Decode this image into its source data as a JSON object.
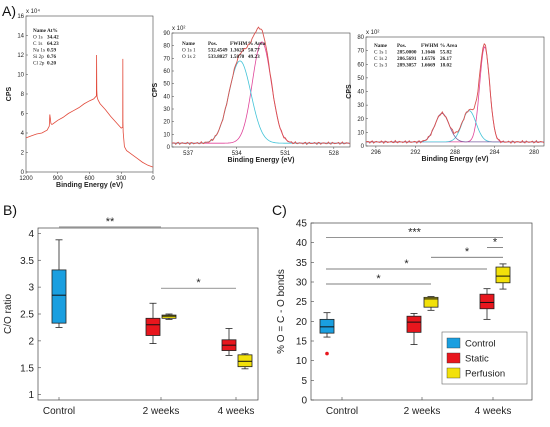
{
  "panel_letters": {
    "a": "A)",
    "b": "B)",
    "c": "C)"
  },
  "chart_data": [
    {
      "id": "survey",
      "type": "line",
      "xlabel": "Binding Energy (eV)",
      "ylabel": "CPS",
      "x_multiplier": "x 10⁴",
      "xlim": [
        1200,
        0
      ],
      "ylim": [
        0,
        16
      ],
      "x_ticks": [
        1200,
        900,
        600,
        300,
        0
      ],
      "y_ticks": [
        0,
        2,
        4,
        6,
        8,
        10,
        12,
        14,
        16
      ],
      "table": {
        "headers": [
          "Name",
          "At%"
        ],
        "rows": [
          [
            "O 1s",
            "34.42"
          ],
          [
            "C 1s",
            "64.23"
          ],
          [
            "Na 1s",
            "0.59"
          ],
          [
            "Si 2p",
            "0.76"
          ],
          [
            "Cl 2p",
            "0.20"
          ]
        ]
      },
      "x": [
        1200,
        1150,
        1100,
        1050,
        1000,
        980,
        975,
        970,
        965,
        960,
        950,
        900,
        850,
        800,
        750,
        700,
        650,
        600,
        560,
        535,
        533,
        531,
        528,
        520,
        500,
        450,
        400,
        350,
        300,
        286,
        285,
        284,
        282,
        270,
        250,
        200,
        150,
        100,
        50,
        0
      ],
      "y": [
        3.5,
        3.7,
        3.9,
        4.0,
        4.3,
        4.7,
        5.9,
        5.5,
        5.0,
        4.9,
        4.9,
        5.3,
        5.6,
        6.0,
        6.3,
        6.6,
        7.0,
        7.3,
        7.5,
        7.8,
        12.0,
        8.4,
        7.7,
        7.4,
        7.0,
        6.4,
        5.7,
        5.1,
        4.5,
        4.6,
        11.6,
        5.2,
        4.1,
        2.6,
        2.2,
        1.8,
        1.4,
        1.0,
        0.7,
        0.5
      ]
    },
    {
      "id": "o1s",
      "type": "line",
      "xlabel": "Binding Energy (eV)",
      "ylabel": "CPS",
      "x_multiplier": "x 10²",
      "xlim": [
        538,
        527
      ],
      "ylim": [
        0,
        90
      ],
      "x_ticks": [
        537,
        534,
        531,
        528
      ],
      "y_ticks": [
        0,
        10,
        20,
        30,
        40,
        50,
        60,
        70,
        80,
        90
      ],
      "table": {
        "headers": [
          "Name",
          "Pos.",
          "FWHM",
          "% Area"
        ],
        "rows": [
          [
            "O 1s 1",
            "532.4549",
            "1.3625",
            "50.77"
          ],
          [
            "O 1s 2",
            "533.8027",
            "1.5870",
            "49.23"
          ]
        ]
      },
      "components": [
        {
          "center": 532.45,
          "height": 80,
          "sigma": 0.58
        },
        {
          "center": 533.8,
          "height": 65,
          "sigma": 0.68
        }
      ],
      "baseline": 3,
      "series_colors": [
        "#d9534f",
        "#e0459a",
        "#45c4d8"
      ]
    },
    {
      "id": "c1s",
      "type": "line",
      "xlabel": "Binding Energy (eV)",
      "ylabel": "CPS",
      "x_multiplier": "x 10²",
      "xlim": [
        297,
        279
      ],
      "ylim": [
        0,
        80
      ],
      "x_ticks": [
        296,
        292,
        288,
        284,
        280
      ],
      "y_ticks": [
        0,
        10,
        20,
        30,
        40,
        50,
        60,
        70,
        80
      ],
      "table": {
        "headers": [
          "Name",
          "Pos.",
          "FWHM",
          "% Area"
        ],
        "rows": [
          [
            "C 1s 1",
            "285.0000",
            "1.1646",
            "55.82"
          ],
          [
            "C 1s 2",
            "286.5691",
            "1.6576",
            "26.17"
          ],
          [
            "C 1s 3",
            "289.3057",
            "1.6669",
            "18.02"
          ]
        ]
      },
      "components": [
        {
          "center": 285.0,
          "height": 70,
          "sigma": 0.5
        },
        {
          "center": 286.57,
          "height": 23,
          "sigma": 0.7
        },
        {
          "center": 289.31,
          "height": 21,
          "sigma": 0.71
        }
      ],
      "baseline": 3,
      "series_colors": [
        "#d9534f",
        "#e0459a",
        "#45c4d8",
        "#7a5fa0"
      ]
    },
    {
      "id": "co_ratio",
      "type": "box",
      "ylabel": "C/O ratio",
      "ylim": [
        0.9,
        4.1
      ],
      "y_ticks": [
        1,
        1.5,
        2,
        2.5,
        3,
        3.5,
        4
      ],
      "categories": [
        "Control",
        "2 weeks",
        "4 weeks"
      ],
      "boxes": [
        {
          "series": "Control",
          "category": "Control",
          "min": 2.25,
          "q1": 2.33,
          "median": 2.85,
          "q3": 3.32,
          "max": 3.88,
          "color": "#1a9fe0"
        },
        {
          "series": "Static",
          "category": "2 weeks",
          "min": 1.95,
          "q1": 2.1,
          "median": 2.3,
          "q3": 2.42,
          "max": 2.7,
          "color": "#e8161d"
        },
        {
          "series": "Perfusion",
          "category": "2 weeks",
          "min": 2.4,
          "q1": 2.42,
          "median": 2.46,
          "q3": 2.48,
          "max": 2.5,
          "color": "#f2e10a"
        },
        {
          "series": "Static",
          "category": "4 weeks",
          "min": 1.73,
          "q1": 1.82,
          "median": 1.92,
          "q3": 2.02,
          "max": 2.23,
          "color": "#e8161d"
        },
        {
          "series": "Perfusion",
          "category": "4 weeks",
          "min": 1.48,
          "q1": 1.52,
          "median": 1.62,
          "q3": 1.74,
          "max": 1.76,
          "color": "#f2e10a"
        }
      ],
      "outliers": [],
      "significance": [
        {
          "label": "**",
          "from": "Control",
          "to": "2 weeks",
          "y": 4.12
        },
        {
          "label": "*",
          "from": "2 weeks",
          "to": "4 weeks",
          "y": 2.98
        }
      ]
    },
    {
      "id": "oco_bonds",
      "type": "box",
      "ylabel": "% O = C - O bonds",
      "ylim": [
        0,
        45
      ],
      "y_ticks": [
        0,
        5,
        10,
        15,
        20,
        25,
        30,
        35,
        40,
        45
      ],
      "categories": [
        "Control",
        "2 weeks",
        "4 weeks"
      ],
      "boxes": [
        {
          "series": "Control",
          "category": "Control",
          "min": 16,
          "q1": 17,
          "median": 18.6,
          "q3": 20.5,
          "max": 22.2,
          "color": "#1a9fe0"
        },
        {
          "series": "Static",
          "category": "2 weeks",
          "min": 14.1,
          "q1": 17.2,
          "median": 19.8,
          "q3": 21.3,
          "max": 22.0,
          "color": "#e8161d"
        },
        {
          "series": "Perfusion",
          "category": "2 weeks",
          "min": 22.8,
          "q1": 23.6,
          "median": 25.7,
          "q3": 26.1,
          "max": 26.3,
          "color": "#f2e10a"
        },
        {
          "series": "Static",
          "category": "4 weeks",
          "min": 20.5,
          "q1": 23.2,
          "median": 24.8,
          "q3": 26.9,
          "max": 28.3,
          "color": "#e8161d"
        },
        {
          "series": "Perfusion",
          "category": "4 weeks",
          "min": 28.2,
          "q1": 29.8,
          "median": 31.5,
          "q3": 33.8,
          "max": 34.6,
          "color": "#f2e10a"
        }
      ],
      "outliers": [
        {
          "category": "Control",
          "series": "Control",
          "value": 11.8
        }
      ],
      "significance": [
        {
          "label": "***",
          "from": "Control",
          "to": "4w-perfusion",
          "y": 41.3
        },
        {
          "label": "*",
          "from": "4w-static",
          "to": "4w-perfusion",
          "y": 38.8
        },
        {
          "label": "*",
          "from": "Control",
          "to": "4w-static",
          "y": 33.3
        },
        {
          "label": "*",
          "from": "2w-perfusion",
          "to": "4w-perfusion",
          "y": 36.3
        },
        {
          "label": "*",
          "from": "Control",
          "to": "2w-perfusion",
          "y": 29.5
        }
      ],
      "legend": [
        {
          "label": "Control",
          "color": "#1a9fe0"
        },
        {
          "label": "Static",
          "color": "#e8161d"
        },
        {
          "label": "Perfusion",
          "color": "#f2e10a"
        }
      ]
    }
  ]
}
